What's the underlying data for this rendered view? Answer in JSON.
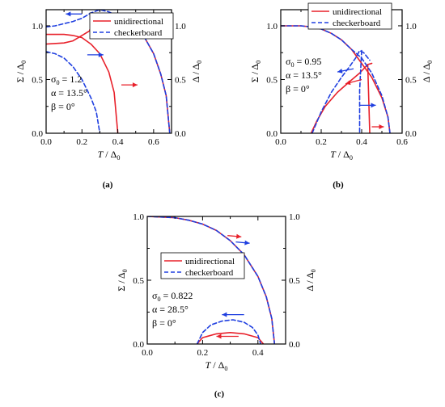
{
  "colors": {
    "unidirectional": "#e8202a",
    "checkerboard": "#1f3fe0",
    "axis": "#000000",
    "background": "#ffffff"
  },
  "chart_data": [
    {
      "panel": "(a)",
      "type": "line",
      "xlabel": "T / Δ0",
      "ylabel_left": "Σ / Δ0",
      "ylabel_right": "Δ / Δ0",
      "xlim": [
        0,
        0.7
      ],
      "ylim": [
        0,
        1.15
      ],
      "xticks": [
        "0.0",
        "0.2",
        "0.4",
        "0.6"
      ],
      "yticks": [
        "0.0",
        "0.5",
        "1.0"
      ],
      "legend": [
        "unidirectional",
        "checkerboard"
      ],
      "legend_position": "top-right",
      "grid": false,
      "annotations": [
        "σ0 = 1.2",
        "α = 13.5°",
        "β = 0°"
      ],
      "series": [
        {
          "name": "unidirectional",
          "style": "solid",
          "segments": [
            {
              "x": [
                0.0,
                0.1,
                0.15,
                0.2,
                0.25,
                0.3,
                0.35,
                0.38,
                0.4
              ],
              "y": [
                0.92,
                0.92,
                0.91,
                0.89,
                0.83,
                0.74,
                0.57,
                0.38,
                0.0
              ]
            },
            {
              "x": [
                0.0,
                0.1,
                0.15,
                0.2,
                0.3,
                0.4,
                0.5,
                0.55,
                0.6,
                0.64,
                0.67,
                0.69
              ],
              "y": [
                0.83,
                0.84,
                0.86,
                0.91,
                1.01,
                1.09,
                0.99,
                0.89,
                0.74,
                0.55,
                0.35,
                0.0
              ]
            }
          ]
        },
        {
          "name": "checkerboard",
          "style": "dashed",
          "segments": [
            {
              "x": [
                0.0,
                0.05,
                0.1,
                0.15,
                0.2,
                0.25,
                0.28,
                0.3
              ],
              "y": [
                0.76,
                0.74,
                0.7,
                0.62,
                0.5,
                0.33,
                0.2,
                0.0
              ]
            },
            {
              "x": [
                0.0,
                0.05,
                0.1,
                0.15,
                0.2,
                0.25,
                0.3,
                0.35,
                0.4,
                0.45,
                0.5,
                0.55,
                0.6,
                0.64,
                0.67,
                0.69
              ],
              "y": [
                0.99,
                1.0,
                1.02,
                1.04,
                1.07,
                1.12,
                1.15,
                1.13,
                1.09,
                1.05,
                0.99,
                0.89,
                0.74,
                0.55,
                0.35,
                0.0
              ]
            }
          ]
        }
      ],
      "arrows": [
        {
          "color": "checkerboard",
          "from": [
            0.2,
            1.11
          ],
          "to": [
            0.11,
            1.11
          ]
        },
        {
          "color": "unidirectional",
          "from": [
            0.33,
            1.01
          ],
          "to": [
            0.24,
            0.96
          ]
        },
        {
          "color": "checkerboard",
          "from": [
            0.23,
            0.73
          ],
          "to": [
            0.32,
            0.73
          ]
        },
        {
          "color": "unidirectional",
          "from": [
            0.42,
            0.45
          ],
          "to": [
            0.51,
            0.45
          ]
        }
      ]
    },
    {
      "panel": "(b)",
      "type": "line",
      "xlabel": "T / Δ0",
      "ylabel_left": "Σ / Δ0",
      "ylabel_right": "Δ / Δ0",
      "xlim": [
        0,
        0.6
      ],
      "ylim": [
        0,
        1.15
      ],
      "xticks": [
        "0.0",
        "0.2",
        "0.4",
        "0.6"
      ],
      "yticks": [
        "0.0",
        "0.5",
        "1.0"
      ],
      "legend": [
        "unidirectional",
        "checkerboard"
      ],
      "legend_position": "top-right",
      "grid": false,
      "annotations": [
        "σ0 = 0.95",
        "α = 13.5°",
        "β = 0°"
      ],
      "series": [
        {
          "name": "unidirectional",
          "style": "solid",
          "segments": [
            {
              "x": [
                0.0,
                0.1,
                0.15,
                0.2,
                0.25,
                0.3,
                0.35,
                0.4,
                0.45,
                0.5,
                0.53,
                0.54
              ],
              "y": [
                1.0,
                1.0,
                0.99,
                0.97,
                0.93,
                0.87,
                0.78,
                0.65,
                0.52,
                0.33,
                0.15,
                0.0
              ]
            },
            {
              "x": [
                0.15,
                0.18,
                0.22,
                0.28,
                0.34,
                0.39,
                0.43,
                0.45
              ],
              "y": [
                0.0,
                0.12,
                0.25,
                0.38,
                0.48,
                0.56,
                0.64,
                0.65
              ]
            },
            {
              "x": [
                0.43,
                0.44
              ],
              "y": [
                0.64,
                0.0
              ]
            }
          ]
        },
        {
          "name": "checkerboard",
          "style": "dashed",
          "segments": [
            {
              "x": [
                0.0,
                0.1,
                0.15,
                0.2,
                0.25,
                0.3,
                0.35,
                0.4,
                0.45,
                0.5,
                0.53,
                0.54
              ],
              "y": [
                1.0,
                1.0,
                0.99,
                0.97,
                0.93,
                0.87,
                0.78,
                0.7,
                0.56,
                0.35,
                0.15,
                0.0
              ]
            },
            {
              "x": [
                0.155,
                0.2,
                0.25,
                0.3,
                0.34,
                0.37,
                0.39,
                0.41,
                0.44
              ],
              "y": [
                0.0,
                0.2,
                0.38,
                0.52,
                0.62,
                0.7,
                0.77,
                0.75,
                0.68
              ]
            },
            {
              "x": [
                0.4,
                0.39,
                0.39
              ],
              "y": [
                0.77,
                0.4,
                0.0
              ]
            }
          ]
        }
      ],
      "arrows": [
        {
          "color": "checkerboard",
          "from": [
            0.36,
            0.6
          ],
          "to": [
            0.28,
            0.57
          ]
        },
        {
          "color": "unidirectional",
          "from": [
            0.4,
            0.5
          ],
          "to": [
            0.32,
            0.46
          ]
        },
        {
          "color": "checkerboard",
          "from": [
            0.39,
            0.26
          ],
          "to": [
            0.47,
            0.26
          ]
        },
        {
          "color": "unidirectional",
          "from": [
            0.45,
            0.06
          ],
          "to": [
            0.51,
            0.06
          ]
        }
      ]
    },
    {
      "panel": "(c)",
      "type": "line",
      "xlabel": "T / Δ0",
      "ylabel_left": "Σ / Δ0",
      "ylabel_right": "Δ / Δ0",
      "xlim": [
        0,
        0.5
      ],
      "ylim": [
        0,
        1.0
      ],
      "xticks": [
        "0.0",
        "0.2",
        "0.4"
      ],
      "yticks": [
        "0.0",
        "0.5",
        "1.0"
      ],
      "legend": [
        "unidirectional",
        "checkerboard"
      ],
      "legend_position": "center-right",
      "grid": false,
      "annotations": [
        "σ0 = 0.822",
        "α = 28.5°",
        "β = 0°"
      ],
      "series": [
        {
          "name": "unidirectional",
          "style": "solid",
          "segments": [
            {
              "x": [
                0.0,
                0.1,
                0.15,
                0.2,
                0.25,
                0.3,
                0.35,
                0.4,
                0.43,
                0.45,
                0.46
              ],
              "y": [
                1.0,
                0.99,
                0.97,
                0.94,
                0.89,
                0.81,
                0.7,
                0.53,
                0.37,
                0.2,
                0.0
              ]
            },
            {
              "x": [
                0.18,
                0.2,
                0.25,
                0.3,
                0.35,
                0.4,
                0.42
              ],
              "y": [
                0.0,
                0.05,
                0.08,
                0.09,
                0.08,
                0.05,
                0.0
              ]
            }
          ]
        },
        {
          "name": "checkerboard",
          "style": "dashed",
          "segments": [
            {
              "x": [
                0.0,
                0.1,
                0.15,
                0.2,
                0.25,
                0.3,
                0.35,
                0.4,
                0.43,
                0.45,
                0.46
              ],
              "y": [
                1.0,
                0.99,
                0.97,
                0.94,
                0.89,
                0.81,
                0.7,
                0.53,
                0.37,
                0.2,
                0.0
              ]
            },
            {
              "x": [
                0.18,
                0.2,
                0.23,
                0.27,
                0.31,
                0.35,
                0.38,
                0.4,
                0.41
              ],
              "y": [
                0.0,
                0.09,
                0.15,
                0.18,
                0.19,
                0.17,
                0.13,
                0.07,
                0.0
              ]
            }
          ]
        }
      ],
      "arrows": [
        {
          "color": "unidirectional",
          "from": [
            0.29,
            0.85
          ],
          "to": [
            0.34,
            0.84
          ]
        },
        {
          "color": "checkerboard",
          "from": [
            0.32,
            0.8
          ],
          "to": [
            0.37,
            0.79
          ]
        },
        {
          "color": "checkerboard",
          "from": [
            0.35,
            0.23
          ],
          "to": [
            0.27,
            0.23
          ]
        },
        {
          "color": "unidirectional",
          "from": [
            0.33,
            0.06
          ],
          "to": [
            0.25,
            0.06
          ]
        }
      ]
    }
  ]
}
